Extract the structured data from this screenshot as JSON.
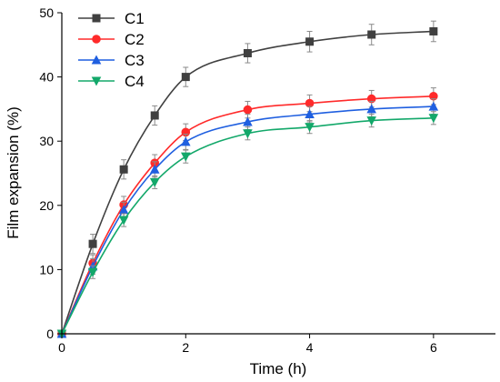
{
  "chart_data": {
    "type": "line",
    "xlabel": "Time (h)",
    "ylabel": "Film expansion (%)",
    "xlim": [
      0,
      7
    ],
    "ylim": [
      0,
      50
    ],
    "xticks": [
      0,
      2,
      4,
      6
    ],
    "yticks": [
      0,
      10,
      20,
      30,
      40,
      50
    ],
    "grid": false,
    "legend_position": "top-left",
    "x": [
      0,
      0.5,
      1,
      1.5,
      2,
      3,
      4,
      5,
      6
    ],
    "series": [
      {
        "name": "C1",
        "color": "#404040",
        "marker": "square",
        "values": [
          0,
          14.0,
          25.6,
          34.0,
          40.0,
          43.7,
          45.5,
          46.6,
          47.1
        ],
        "errors": [
          0,
          1.5,
          1.5,
          1.5,
          1.5,
          1.5,
          1.6,
          1.6,
          1.6
        ]
      },
      {
        "name": "C2",
        "color": "#ff2a2a",
        "marker": "circle",
        "values": [
          0,
          11.0,
          20.1,
          26.6,
          31.4,
          34.9,
          35.9,
          36.6,
          37.0
        ],
        "errors": [
          0,
          1.3,
          1.3,
          1.3,
          1.3,
          1.3,
          1.3,
          1.3,
          1.3
        ]
      },
      {
        "name": "C3",
        "color": "#1f5fe0",
        "marker": "triangle-up",
        "values": [
          0,
          10.5,
          19.3,
          25.6,
          29.9,
          33.0,
          34.2,
          35.0,
          35.4
        ],
        "errors": [
          0,
          1.2,
          1.2,
          1.2,
          1.2,
          1.2,
          1.2,
          1.2,
          1.2
        ]
      },
      {
        "name": "C4",
        "color": "#13a86a",
        "marker": "triangle-down",
        "values": [
          0,
          9.6,
          17.7,
          23.6,
          27.6,
          31.2,
          32.2,
          33.2,
          33.6
        ],
        "errors": [
          0,
          1.0,
          1.0,
          1.0,
          1.0,
          1.0,
          1.0,
          1.0,
          1.0
        ]
      }
    ]
  }
}
